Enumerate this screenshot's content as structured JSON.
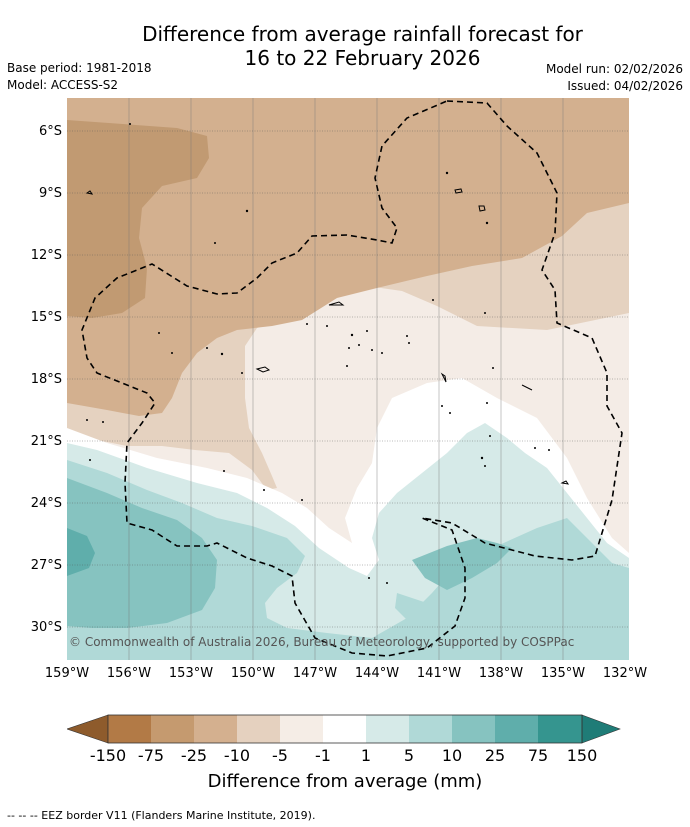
{
  "title_line1": "Difference from average rainfall forecast for",
  "title_line2": "16 to 22 February 2026",
  "base_period": "Base period: 1981-2018",
  "model": "Model: ACCESS-S2",
  "model_run": "Model run: 02/02/2026",
  "issued": "Issued: 04/02/2026",
  "latitude_labels": [
    "6°S",
    "9°S",
    "12°S",
    "15°S",
    "18°S",
    "21°S",
    "24°S",
    "27°S",
    "30°S"
  ],
  "longitude_labels": [
    "159°W",
    "156°W",
    "153°W",
    "150°W",
    "147°W",
    "144°W",
    "141°W",
    "138°W",
    "135°W",
    "132°W"
  ],
  "credit": "© Commonwealth of Australia 2026, Bureau of Meteorology, supported by COSPPac",
  "colorbar": {
    "label": "Difference from average (mm)",
    "ticks": [
      "-150",
      "-75",
      "-25",
      "-10",
      "-5",
      "-1",
      "1",
      "5",
      "10",
      "25",
      "75",
      "150"
    ],
    "colors": [
      "#8e5b2c",
      "#b27a46",
      "#c59a6f",
      "#d4b08f",
      "#e5d1bf",
      "#f5ede6",
      "#ffffff",
      "#d6eae8",
      "#b0d9d7",
      "#86c3c0",
      "#5faeab",
      "#35958f",
      "#1f7c77"
    ]
  },
  "footnote": "--  --  -- EEZ border V11 (Flanders Marine Institute, 2019)."
}
